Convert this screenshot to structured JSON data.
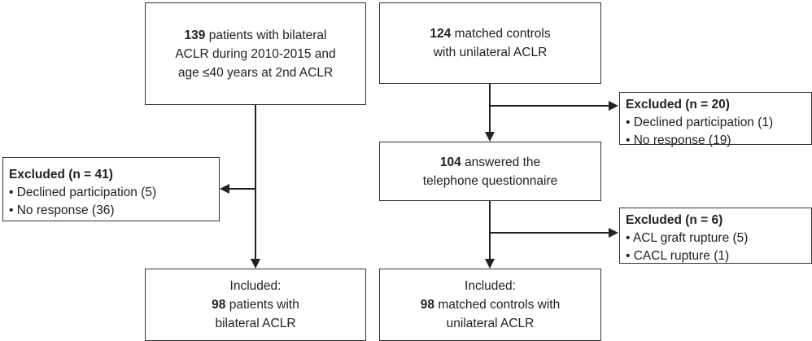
{
  "boxes": [
    {
      "lines": [
        {
          "bold": "139",
          "text": "patients with bilateral"
        },
        {
          "text": "ACLR during 2010-2015 and"
        },
        {
          "text": "age ≤40 years at 2nd ACLR"
        }
      ]
    },
    {
      "lines": [
        {
          "bold": "124",
          "text": "matched controls"
        },
        {
          "text": "with unilateral ACLR"
        }
      ]
    },
    {
      "lines": [
        {
          "bold": "104",
          "text": "answered the"
        },
        {
          "text": "telephone questionnaire"
        }
      ]
    },
    {
      "lines": [
        {
          "text": "Included:"
        },
        {
          "bold": "98",
          "text": "patients with"
        },
        {
          "text": "bilateral ACLR"
        }
      ]
    },
    {
      "lines": [
        {
          "text": "Included:"
        },
        {
          "bold": "98",
          "text": "matched controls with"
        },
        {
          "text": "unilateral ACLR"
        }
      ]
    }
  ],
  "excluded": [
    {
      "title": "Excluded (n = 20)",
      "items": [
        "• Declined participation (1)",
        "• No response (19)"
      ]
    },
    {
      "title": "Excluded (n = 41)",
      "items": [
        "• Declined participation (5)",
        "• No response (36)"
      ]
    },
    {
      "title": "Excluded (n = 6)",
      "items": [
        "• ACL graft rupture (5)",
        "• CACL rupture (1)"
      ]
    }
  ]
}
